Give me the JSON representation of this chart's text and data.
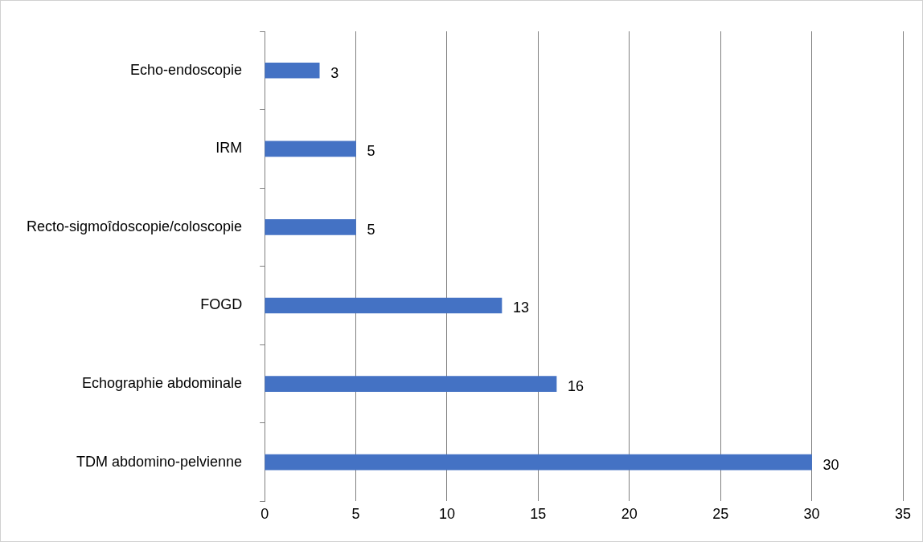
{
  "chart_data": {
    "type": "bar",
    "orientation": "horizontal",
    "categories": [
      "Echo-endoscopie",
      "IRM",
      "Recto-sigmoîdoscopie/coloscopie",
      "FOGD",
      "Echographie abdominale",
      "TDM abdomino-pelvienne"
    ],
    "values": [
      3,
      5,
      5,
      13,
      16,
      30
    ],
    "color": "#4472c4",
    "xlim": [
      0,
      35
    ],
    "xticks": [
      0,
      5,
      10,
      15,
      20,
      25,
      30,
      35
    ],
    "grid": "x",
    "legend": false,
    "data_labels": true
  }
}
